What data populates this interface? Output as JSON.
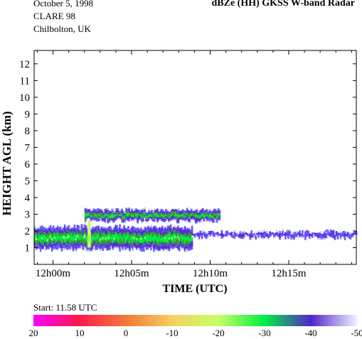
{
  "header": {
    "date": "October 5, 1998",
    "campaign": "CLARE 98",
    "site": "Chilbolton, UK",
    "title": "dBZe (HH)   GKSS  W-band Radar"
  },
  "footer": {
    "start_time": "Start: 11.58 UTC"
  },
  "colorbar": {
    "labels": [
      "20",
      "10",
      "0",
      "-10",
      "-20",
      "-30",
      "-40",
      "-50"
    ],
    "colors": [
      "#ff00ff",
      "#ff1a4a",
      "#f07a3a",
      "#f5d060",
      "#c8ff66",
      "#00ee44",
      "#5522cc",
      "#f2f2ff"
    ]
  },
  "chart_data": {
    "type": "heatmap",
    "title": "dBZe (HH)   GKSS  W-band Radar",
    "xlabel": "TIME (UTC)",
    "ylabel": "HEIGHT AGL (km)",
    "xlim_minutes_after_12h00": [
      -1.2,
      19.3
    ],
    "ylim_km": [
      0,
      12.8
    ],
    "x_ticks": [
      "12h00m",
      "12h05m",
      "12h10m",
      "12h15m"
    ],
    "y_ticks": [
      "1",
      "2",
      "3",
      "4",
      "5",
      "6",
      "7",
      "8",
      "9",
      "10",
      "11",
      "12"
    ],
    "colorbar_dbze_range": [
      20,
      -50
    ],
    "layers": [
      {
        "name": "upper cloud layer",
        "start_min": 2.0,
        "end_min": 10.6,
        "base_km": 2.6,
        "top_km": 3.2,
        "core_dbze": -30
      },
      {
        "name": "lower cloud layer",
        "start_min": -1.2,
        "end_min": 8.8,
        "base_km": 0.9,
        "top_km": 2.2,
        "core_dbze": -28
      },
      {
        "name": "lower layer trailing",
        "start_min": 8.8,
        "end_min": 19.3,
        "base_km": 1.6,
        "top_km": 1.9,
        "core_dbze": -42
      },
      {
        "name": "vertical streak",
        "start_min": 2.2,
        "end_min": 2.3,
        "base_km": 1.0,
        "top_km": 2.6,
        "core_dbze": -22
      }
    ]
  }
}
